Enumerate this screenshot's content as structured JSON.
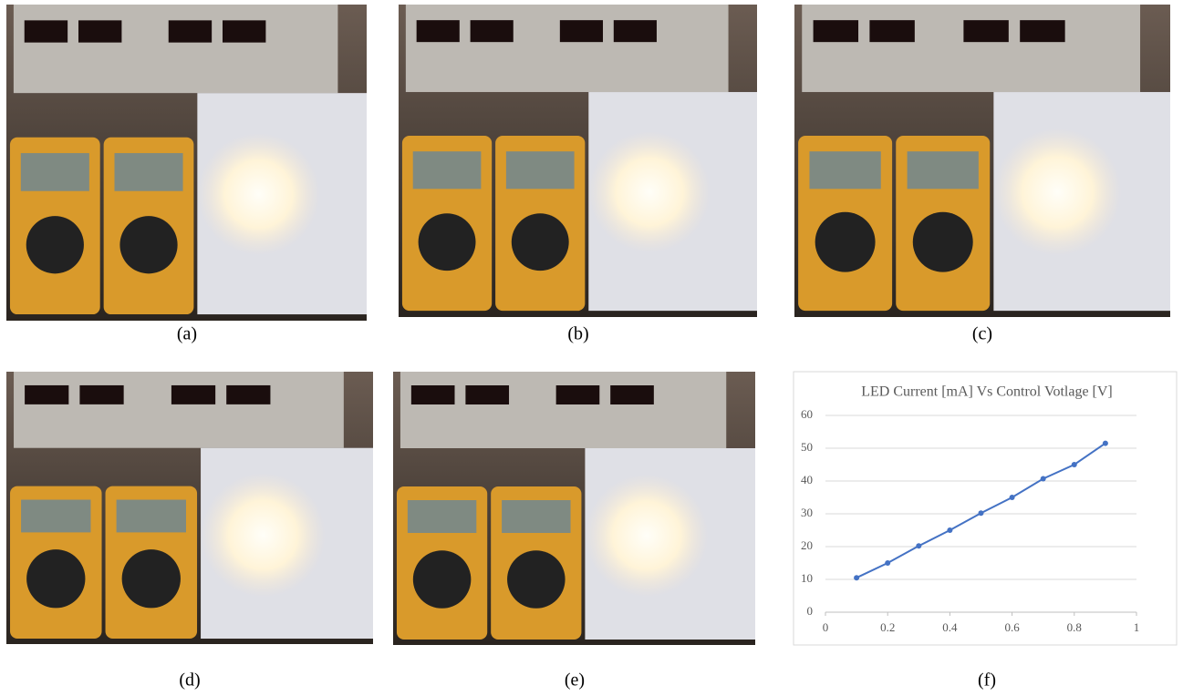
{
  "panels": [
    {
      "caption": "(a)"
    },
    {
      "caption": "(b)"
    },
    {
      "caption": "(c)"
    },
    {
      "caption": "(d)"
    },
    {
      "caption": "(e)"
    },
    {
      "caption": "(f)"
    }
  ],
  "chart_data": {
    "type": "line",
    "title": "LED Current [mA] Vs Control Votlage [V]",
    "x": [
      0.1,
      0.2,
      0.3,
      0.4,
      0.5,
      0.6,
      0.7,
      0.8,
      0.9
    ],
    "values": [
      10.5,
      15,
      20.2,
      25,
      30.2,
      35,
      40.7,
      45,
      51.5
    ],
    "color": "#4472c4",
    "xlim": [
      0,
      1
    ],
    "xticks": [
      0,
      0.2,
      0.4,
      0.6,
      0.8,
      1
    ],
    "ylim": [
      0,
      60
    ],
    "yticks": [
      0,
      10,
      20,
      30,
      40,
      50,
      60
    ],
    "grid": true
  }
}
